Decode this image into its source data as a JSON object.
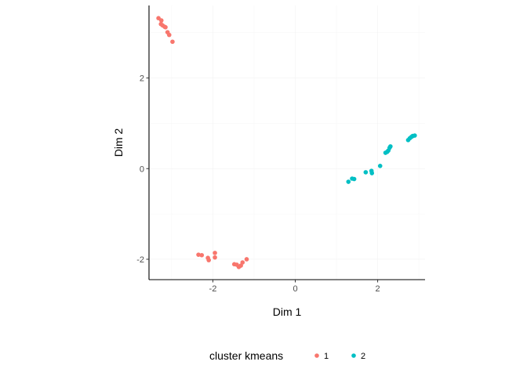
{
  "chart_data": {
    "type": "scatter",
    "title": "",
    "xlabel": "Dim 1",
    "ylabel": "Dim 2",
    "xlim": [
      -3.55,
      3.15
    ],
    "ylim": [
      -2.45,
      3.6
    ],
    "x_ticks": [
      -2,
      0,
      2
    ],
    "y_ticks": [
      -2,
      0,
      2
    ],
    "x_tick_labels": [
      "-2",
      "0",
      "2"
    ],
    "y_tick_labels": [
      "-2",
      "0",
      "2"
    ],
    "grid": true,
    "legend": {
      "title": "cluster kmeans",
      "placement": "bottom"
    },
    "series": [
      {
        "name": "1",
        "color": "#F8766D",
        "points": [
          [
            -3.32,
            3.32
          ],
          [
            -3.25,
            3.27
          ],
          [
            -3.26,
            3.19
          ],
          [
            -3.22,
            3.16
          ],
          [
            -3.17,
            3.13
          ],
          [
            -3.15,
            3.12
          ],
          [
            -3.1,
            3.01
          ],
          [
            -3.06,
            2.95
          ],
          [
            -2.98,
            2.8
          ],
          [
            -2.35,
            -1.9
          ],
          [
            -2.27,
            -1.91
          ],
          [
            -2.12,
            -1.97
          ],
          [
            -2.1,
            -2.02
          ],
          [
            -1.95,
            -1.86
          ],
          [
            -1.95,
            -1.96
          ],
          [
            -1.48,
            -2.11
          ],
          [
            -1.42,
            -2.12
          ],
          [
            -1.37,
            -2.17
          ],
          [
            -1.32,
            -2.14
          ],
          [
            -1.28,
            -2.07
          ],
          [
            -1.18,
            -2.0
          ]
        ]
      },
      {
        "name": "2",
        "color": "#00BFC4",
        "points": [
          [
            1.29,
            -0.29
          ],
          [
            1.38,
            -0.22
          ],
          [
            1.43,
            -0.23
          ],
          [
            1.71,
            -0.08
          ],
          [
            1.85,
            -0.05
          ],
          [
            1.86,
            -0.1
          ],
          [
            2.06,
            0.06
          ],
          [
            2.19,
            0.35
          ],
          [
            2.23,
            0.37
          ],
          [
            2.26,
            0.4
          ],
          [
            2.29,
            0.46
          ],
          [
            2.31,
            0.49
          ],
          [
            2.74,
            0.63
          ],
          [
            2.78,
            0.67
          ],
          [
            2.82,
            0.7
          ],
          [
            2.85,
            0.72
          ],
          [
            2.9,
            0.73
          ]
        ]
      }
    ]
  }
}
